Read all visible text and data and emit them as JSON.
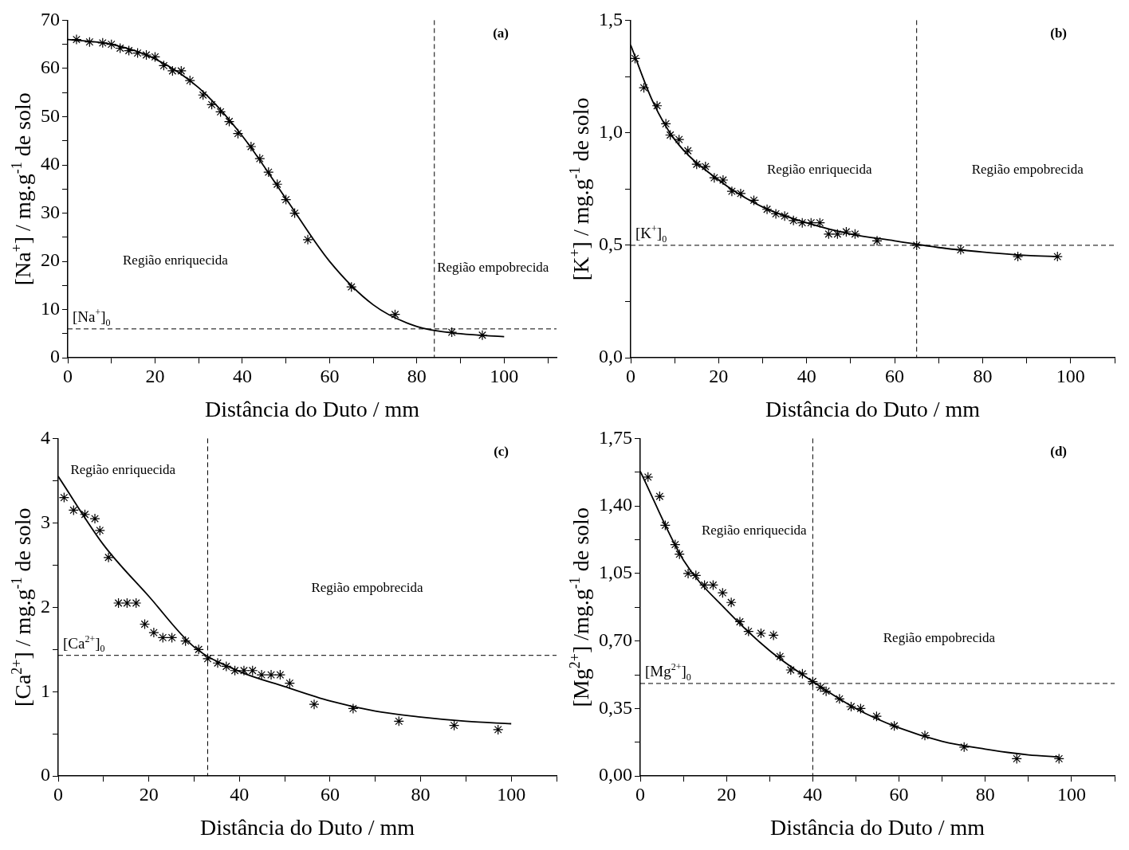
{
  "chart_data": [
    {
      "type": "scatter",
      "title": "(a)",
      "xlabel": "Distância do Duto / mm",
      "ylabel": "[Na$^{+}$] / mg.g$^{-1}$ de solo",
      "xlim": [
        0,
        112
      ],
      "xticks": [
        0,
        {
          "value": 10,
          "label": null
        },
        20,
        {
          "value": 30,
          "label": null
        },
        40,
        {
          "value": 50,
          "label": null
        },
        60,
        {
          "value": 70,
          "label": null
        },
        80,
        {
          "value": 90,
          "label": null
        },
        100,
        {
          "value": 110,
          "label": null
        }
      ],
      "ylim": [
        0,
        70
      ],
      "yticks": [
        0,
        {
          "value": 5,
          "label": null
        },
        10,
        {
          "value": 15,
          "label": null
        },
        20,
        {
          "value": 25,
          "label": null
        },
        30,
        {
          "value": 35,
          "label": null
        },
        40,
        {
          "value": 45,
          "label": null
        },
        50,
        {
          "value": 55,
          "label": null
        },
        60,
        {
          "value": 65,
          "label": null
        },
        70
      ],
      "series": [
        {
          "type": "scatter",
          "marker": "cross",
          "color": "#000000",
          "x": [
            2,
            5,
            8,
            10,
            12,
            14,
            16,
            18,
            20,
            22,
            24,
            26,
            28,
            31,
            33,
            35,
            37,
            39,
            42,
            44,
            46,
            48,
            50,
            52,
            55,
            65,
            75,
            88,
            95
          ],
          "values": [
            66,
            65.5,
            65.3,
            65,
            64.2,
            63.7,
            63.2,
            62.8,
            62.4,
            60.6,
            59.5,
            59.5,
            57.5,
            54.5,
            52.5,
            51,
            49,
            46.5,
            43.8,
            41.3,
            38.5,
            36,
            32.8,
            30,
            24.5,
            14.7,
            9,
            5.3,
            4.7
          ]
        },
        {
          "type": "line",
          "marker": "none",
          "line_style": "solid",
          "color": "#000000",
          "x": [
            0,
            10,
            20,
            30,
            40,
            50,
            60,
            70,
            80,
            90,
            100
          ],
          "values": [
            66,
            65,
            62,
            56,
            46,
            33,
            20,
            11,
            6.5,
            5,
            4.4
          ]
        }
      ],
      "ref_lines": [
        {
          "axis": "y",
          "value": 6,
          "label": "[Na$^{+}$]$_{0}$",
          "line_style": "dashed"
        },
        {
          "axis": "x",
          "value": 84,
          "label": null,
          "line_style": "dashed"
        }
      ],
      "annotations": [
        "Região enriquecida",
        "Região empobrecida"
      ]
    },
    {
      "type": "scatter",
      "title": "(b)",
      "xlabel": "Distância do Duto / mm",
      "ylabel": "[K$^{+}$] / mg.g$^{-1}$ de solo",
      "xlim": [
        0,
        110
      ],
      "xticks": [
        0,
        {
          "value": 10,
          "label": null
        },
        20,
        {
          "value": 30,
          "label": null
        },
        40,
        {
          "value": 50,
          "label": null
        },
        60,
        {
          "value": 70,
          "label": null
        },
        80,
        {
          "value": 90,
          "label": null
        },
        100,
        {
          "value": 110,
          "label": null
        }
      ],
      "ylim": [
        0,
        1.5
      ],
      "yticks": [
        {
          "value": 0,
          "label": "0,0"
        },
        {
          "value": 0.25,
          "label": null
        },
        {
          "value": 0.5,
          "label": "0,5"
        },
        {
          "value": 0.75,
          "label": null
        },
        {
          "value": 1,
          "label": "1,0"
        },
        {
          "value": 1.25,
          "label": null
        },
        {
          "value": 1.5,
          "label": "1,5"
        }
      ],
      "series": [
        {
          "type": "scatter",
          "marker": "cross",
          "color": "#000000",
          "x": [
            1,
            3,
            6,
            8,
            9,
            11,
            13,
            15,
            17,
            19,
            21,
            23,
            25,
            28,
            31,
            33,
            35,
            37,
            39,
            41,
            43,
            45,
            47,
            49,
            51,
            56,
            65,
            75,
            88,
            97
          ],
          "values": [
            1.33,
            1.2,
            1.12,
            1.04,
            0.99,
            0.97,
            0.92,
            0.86,
            0.85,
            0.8,
            0.79,
            0.74,
            0.73,
            0.7,
            0.66,
            0.64,
            0.63,
            0.61,
            0.6,
            0.6,
            0.6,
            0.55,
            0.55,
            0.56,
            0.55,
            0.52,
            0.5,
            0.48,
            0.45,
            0.45
          ]
        },
        {
          "type": "line",
          "marker": "none",
          "line_style": "solid",
          "color": "#000000",
          "x": [
            0,
            5,
            10,
            20,
            30,
            40,
            50,
            60,
            70,
            80,
            90,
            97
          ],
          "values": [
            1.39,
            1.14,
            0.97,
            0.79,
            0.67,
            0.6,
            0.55,
            0.52,
            0.49,
            0.47,
            0.455,
            0.45
          ]
        }
      ],
      "ref_lines": [
        {
          "axis": "y",
          "value": 0.5,
          "label": "[K$^{+}$]$_{0}$",
          "line_style": "dashed"
        },
        {
          "axis": "x",
          "value": 65,
          "label": null,
          "line_style": "dashed"
        }
      ],
      "annotations": [
        "Região enriquecida",
        "Região empobrecida"
      ]
    },
    {
      "type": "scatter",
      "title": "(c)",
      "xlabel": "Distância do Duto / mm",
      "ylabel": "[Ca$^{2+}$] / mg.g$^{-1}$ de solo",
      "xlim": [
        0,
        110
      ],
      "xticks": [
        0,
        {
          "value": 10,
          "label": null
        },
        20,
        {
          "value": 30,
          "label": null
        },
        40,
        {
          "value": 50,
          "label": null
        },
        60,
        {
          "value": 70,
          "label": null
        },
        80,
        {
          "value": 90,
          "label": null
        },
        100,
        {
          "value": 110,
          "label": null
        }
      ],
      "ylim": [
        0,
        4
      ],
      "yticks": [
        0,
        {
          "value": 0.5,
          "label": null
        },
        1,
        {
          "value": 1.5,
          "label": null
        },
        2,
        {
          "value": 2.5,
          "label": null
        },
        3,
        {
          "value": 3.5,
          "label": null
        },
        4
      ],
      "series": [
        {
          "type": "scatter",
          "marker": "cross",
          "color": "#000000",
          "x": [
            1.3,
            3.4,
            5.9,
            8.1,
            9.2,
            11.1,
            13.3,
            15.2,
            17.2,
            19.1,
            21.1,
            23.1,
            25.1,
            28.1,
            31,
            33,
            35.2,
            37.1,
            39,
            41,
            42.9,
            44.9,
            47,
            49,
            51.1,
            56.5,
            65.1,
            75.2,
            87.4,
            97.1
          ],
          "values": [
            3.3,
            3.15,
            3.1,
            3.05,
            2.91,
            2.59,
            2.05,
            2.05,
            2.05,
            1.8,
            1.7,
            1.64,
            1.64,
            1.6,
            1.5,
            1.39,
            1.34,
            1.3,
            1.25,
            1.25,
            1.25,
            1.2,
            1.2,
            1.2,
            1.1,
            0.85,
            0.8,
            0.65,
            0.6,
            0.55
          ]
        },
        {
          "type": "line",
          "marker": "none",
          "line_style": "solid",
          "color": "#000000",
          "x": [
            0,
            10,
            20,
            30,
            40,
            50,
            60,
            70,
            80,
            90,
            100
          ],
          "values": [
            3.55,
            2.74,
            2.13,
            1.53,
            1.24,
            1.06,
            0.89,
            0.77,
            0.7,
            0.65,
            0.62
          ]
        }
      ],
      "ref_lines": [
        {
          "axis": "y",
          "value": 1.43,
          "label": "[Ca$^{2+}$]$_{0}$",
          "line_style": "dashed"
        },
        {
          "axis": "x",
          "value": 33,
          "label": null,
          "line_style": "dashed"
        }
      ],
      "annotations": [
        "Região enriquecida",
        "Região empobrecida"
      ]
    },
    {
      "type": "scatter",
      "title": "(d)",
      "xlabel": "Distância do Duto / mm",
      "ylabel": "[Mg$^{2+}$] /mg.g$^{-1}$ de solo",
      "xlim": [
        0,
        110
      ],
      "xticks": [
        0,
        {
          "value": 10,
          "label": null
        },
        20,
        {
          "value": 30,
          "label": null
        },
        40,
        {
          "value": 50,
          "label": null
        },
        60,
        {
          "value": 70,
          "label": null
        },
        80,
        {
          "value": 90,
          "label": null
        },
        100,
        {
          "value": 110,
          "label": null
        }
      ],
      "ylim": [
        0,
        1.75
      ],
      "yticks": [
        {
          "value": 0,
          "label": "0,00"
        },
        {
          "value": 0.175,
          "label": null
        },
        {
          "value": 0.35,
          "label": "0,35"
        },
        {
          "value": 0.525,
          "label": null
        },
        {
          "value": 0.7,
          "label": "0,70"
        },
        {
          "value": 0.875,
          "label": null
        },
        {
          "value": 1.05,
          "label": "1,05"
        },
        {
          "value": 1.225,
          "label": null
        },
        {
          "value": 1.4,
          "label": "1,40"
        },
        {
          "value": 1.575,
          "label": null
        },
        {
          "value": 1.75,
          "label": "1,75"
        }
      ],
      "series": [
        {
          "type": "scatter",
          "marker": "cross",
          "color": "#000000",
          "x": [
            1.8,
            4.5,
            5.8,
            8.1,
            9.1,
            11.1,
            12.9,
            14.9,
            16.9,
            19.1,
            21.1,
            23.1,
            25.1,
            28,
            30.9,
            32.4,
            34.9,
            37.6,
            40,
            41.8,
            43.1,
            46.2,
            48.9,
            51.1,
            54.8,
            58.9,
            66,
            75.1,
            87.3,
            97.1
          ],
          "values": [
            1.55,
            1.45,
            1.3,
            1.2,
            1.15,
            1.05,
            1.04,
            0.99,
            0.99,
            0.95,
            0.9,
            0.8,
            0.75,
            0.74,
            0.73,
            0.62,
            0.55,
            0.53,
            0.49,
            0.46,
            0.44,
            0.4,
            0.36,
            0.35,
            0.31,
            0.26,
            0.21,
            0.15,
            0.09,
            0.09
          ]
        },
        {
          "type": "line",
          "marker": "none",
          "line_style": "solid",
          "color": "#000000",
          "x": [
            0,
            10,
            20,
            30,
            40,
            50,
            60,
            70,
            80,
            90,
            97
          ],
          "values": [
            1.58,
            1.12,
            0.86,
            0.65,
            0.49,
            0.35,
            0.25,
            0.18,
            0.14,
            0.11,
            0.1
          ]
        }
      ],
      "ref_lines": [
        {
          "axis": "y",
          "value": 0.48,
          "label": "[Mg$^{2+}$]$_{0}$",
          "line_style": "dashed"
        },
        {
          "axis": "x",
          "value": 40,
          "label": null,
          "line_style": "dashed"
        }
      ],
      "annotations": [
        "Região enriquecida",
        "Região empobrecida"
      ]
    }
  ]
}
